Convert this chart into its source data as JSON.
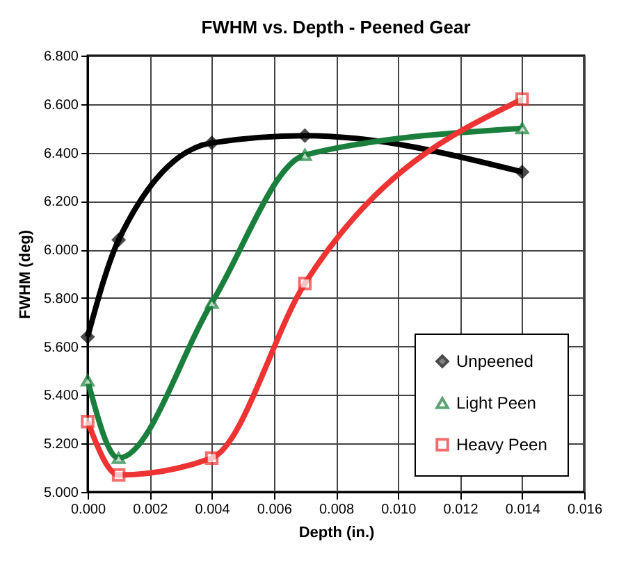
{
  "chart_data": {
    "type": "line",
    "title": "FWHM vs. Depth - Peened Gear",
    "xlabel": "Depth (in.)",
    "ylabel": "FWHM (deg)",
    "x": [
      0,
      0.001,
      0.004,
      0.007,
      0.014
    ],
    "series": [
      {
        "name": "Unpeened",
        "color": "#000000",
        "marker": "diamond",
        "values": [
          5.64,
          6.04,
          6.44,
          6.47,
          6.32
        ]
      },
      {
        "name": "Light Peen",
        "color": "#1a7f3c",
        "marker": "triangle",
        "values": [
          5.46,
          5.14,
          5.78,
          6.39,
          6.5
        ]
      },
      {
        "name": "Heavy Peen",
        "color": "#ee3333",
        "marker": "square",
        "values": [
          5.29,
          5.07,
          5.14,
          5.86,
          6.62
        ]
      }
    ],
    "xlim": [
      0,
      0.016
    ],
    "xticks": [
      {
        "value": 0,
        "label": "0.000"
      },
      {
        "value": 0.002,
        "label": "0.002"
      },
      {
        "value": 0.004,
        "label": "0.004"
      },
      {
        "value": 0.006,
        "label": "0.006"
      },
      {
        "value": 0.008,
        "label": "0.008"
      },
      {
        "value": 0.01,
        "label": "0.010"
      },
      {
        "value": 0.012,
        "label": "0.012"
      },
      {
        "value": 0.014,
        "label": "0.014"
      },
      {
        "value": 0.016,
        "label": "0.016"
      }
    ],
    "ylim": [
      5,
      6.8
    ],
    "yticks": [
      {
        "value": 5,
        "label": "5.000"
      },
      {
        "value": 5.2,
        "label": "5.200"
      },
      {
        "value": 5.4,
        "label": "5.400"
      },
      {
        "value": 5.6,
        "label": "5.600"
      },
      {
        "value": 5.8,
        "label": "5.800"
      },
      {
        "value": 6,
        "label": "6.000"
      },
      {
        "value": 6.2,
        "label": "6.200"
      },
      {
        "value": 6.4,
        "label": "6.400"
      },
      {
        "value": 6.6,
        "label": "6.600"
      },
      {
        "value": 6.8,
        "label": "6.800"
      }
    ],
    "grid": true,
    "legend": "bottom right",
    "line_style": "solid"
  }
}
